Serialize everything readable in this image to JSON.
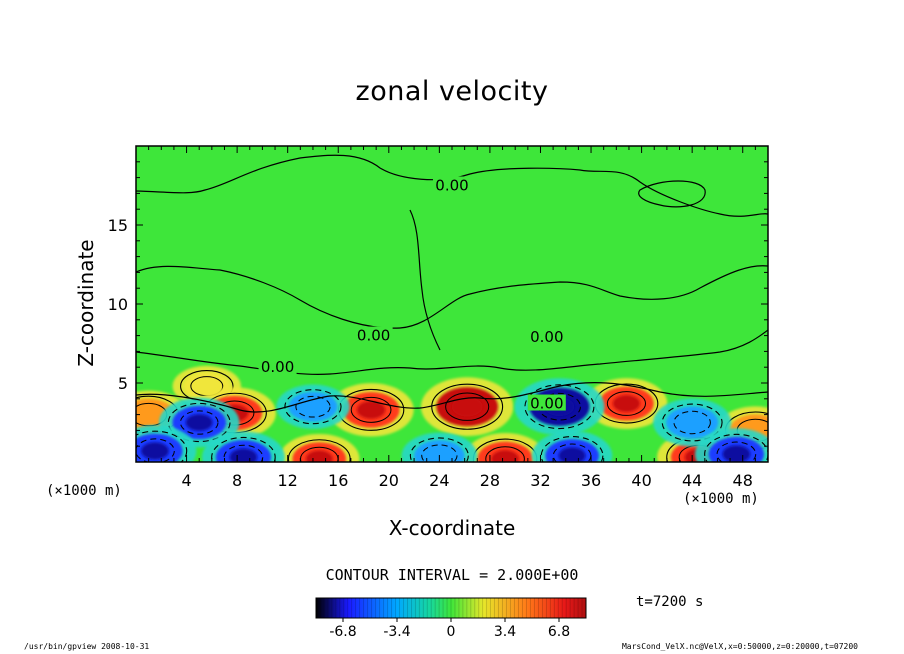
{
  "chart_data": {
    "type": "heatmap",
    "title": "zonal velocity",
    "xlabel": "X-coordinate",
    "ylabel": "Z-coordinate",
    "x_unit": "(×1000 m)",
    "xlim": [
      0,
      50
    ],
    "ylim": [
      0,
      20
    ],
    "x_ticks": [
      4,
      8,
      12,
      16,
      20,
      24,
      28,
      32,
      36,
      40,
      44,
      48
    ],
    "y_ticks": [
      5,
      10,
      15
    ],
    "contour_interval": "CONTOUR INTERVAL = 2.000E+00",
    "contour_labels": [
      {
        "x": 25.0,
        "y": 17.5,
        "text": "0.00"
      },
      {
        "x": 18.8,
        "y": 8.0,
        "text": "0.00"
      },
      {
        "x": 11.2,
        "y": 6.0,
        "text": "0.00"
      },
      {
        "x": 32.5,
        "y": 7.9,
        "text": "0.00"
      },
      {
        "x": 32.5,
        "y": 3.7,
        "text": "0.00"
      }
    ],
    "colorbar": {
      "ticks": [
        "-6.8",
        "-3.4",
        "0",
        "3.4",
        "6.8"
      ],
      "tick_values": [
        -6.8,
        -3.4,
        0,
        3.4,
        6.8
      ],
      "range": [
        -8.5,
        8.5
      ]
    },
    "features": [
      {
        "x": 5.6,
        "z": 4.8,
        "sign": "positive",
        "value": 3.0
      },
      {
        "x": 1.0,
        "z": 3.0,
        "sign": "positive",
        "value": 5.0
      },
      {
        "x": 7.8,
        "z": 3.1,
        "sign": "positive",
        "value": 6.0
      },
      {
        "x": 18.6,
        "z": 3.3,
        "sign": "positive",
        "value": 6.5
      },
      {
        "x": 26.2,
        "z": 3.5,
        "sign": "positive",
        "value": 8.0
      },
      {
        "x": 38.8,
        "z": 3.7,
        "sign": "positive",
        "value": 5.8
      },
      {
        "x": 49.0,
        "z": 2.0,
        "sign": "positive",
        "value": 5.0
      },
      {
        "x": 14.5,
        "z": 0.2,
        "sign": "positive",
        "value": 5.5
      },
      {
        "x": 29.2,
        "z": 0.2,
        "sign": "positive",
        "value": 6.0
      },
      {
        "x": 44.5,
        "z": 0.3,
        "sign": "positive",
        "value": 6.0
      },
      {
        "x": 5.0,
        "z": 2.5,
        "sign": "negative",
        "value": -5.5
      },
      {
        "x": 14.0,
        "z": 3.5,
        "sign": "negative",
        "value": -4.0
      },
      {
        "x": 33.5,
        "z": 3.5,
        "sign": "negative",
        "value": -7.5
      },
      {
        "x": 44.0,
        "z": 2.5,
        "sign": "negative",
        "value": -5.0
      },
      {
        "x": 1.5,
        "z": 0.7,
        "sign": "negative",
        "value": -6.0
      },
      {
        "x": 8.5,
        "z": 0.3,
        "sign": "negative",
        "value": -6.0
      },
      {
        "x": 24.0,
        "z": 0.4,
        "sign": "negative",
        "value": -4.5
      },
      {
        "x": 34.5,
        "z": 0.4,
        "sign": "negative",
        "value": -5.5
      },
      {
        "x": 47.5,
        "z": 0.5,
        "sign": "negative",
        "value": -6.0
      }
    ]
  },
  "time_label": "t=7200 s",
  "footer": {
    "left": "/usr/bin/gpview   2008-10-31",
    "right": "MarsCond_VelX.nc@VelX,x=0:50000,z=0:20000,t=07200"
  }
}
